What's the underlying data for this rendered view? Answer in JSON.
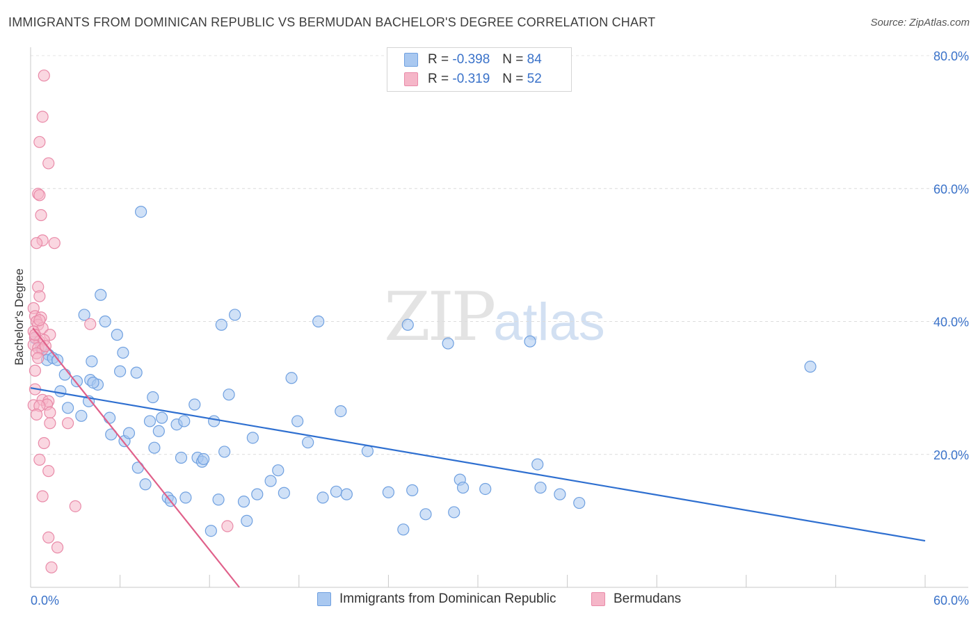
{
  "title": "IMMIGRANTS FROM DOMINICAN REPUBLIC VS BERMUDAN BACHELOR'S DEGREE CORRELATION CHART",
  "source": "Source: ZipAtlas.com",
  "watermark": {
    "zip": "ZIP",
    "atlas": "atlas"
  },
  "legend": {
    "rows": [
      {
        "r_label": "R =",
        "r_value": "-0.398",
        "n_label": "N =",
        "n_value": "84",
        "color": "#a9c8f0"
      },
      {
        "r_label": "R =",
        "r_value": "-0.319",
        "n_label": "N =",
        "n_value": "52",
        "color": "#f5b6c8"
      }
    ]
  },
  "bottom_legend": [
    {
      "label": "Immigrants from Dominican Republic",
      "color": "#a9c8f0"
    },
    {
      "label": "Bermudans",
      "color": "#f5b6c8"
    }
  ],
  "chart_data": {
    "type": "scatter",
    "title": "IMMIGRANTS FROM DOMINICAN REPUBLIC VS BERMUDAN BACHELOR'S DEGREE CORRELATION CHART",
    "xlabel": "",
    "ylabel": "Bachelor's Degree",
    "xlim": [
      0,
      60
    ],
    "ylim": [
      0,
      80
    ],
    "x_tick_labels": [
      "0.0%",
      "60.0%"
    ],
    "y_tick_labels": [
      "20.0%",
      "40.0%",
      "60.0%",
      "80.0%"
    ],
    "y_ticks": [
      20,
      40,
      60,
      80
    ],
    "grid": "horizontal dashed",
    "legend_position": "top-center",
    "series": [
      {
        "name": "Immigrants from Dominican Republic",
        "color": "#6fa0e0",
        "fill": "#a9c8f0",
        "trend": {
          "x": [
            0,
            60
          ],
          "y": [
            30.0,
            7.0
          ],
          "color": "#2e6fd0"
        },
        "points": [
          [
            0.3,
            37.5
          ],
          [
            0.7,
            36.0
          ],
          [
            1.2,
            35.0
          ],
          [
            1.1,
            34.2
          ],
          [
            1.5,
            34.5
          ],
          [
            1.8,
            34.2
          ],
          [
            2.3,
            32.0
          ],
          [
            2.0,
            29.5
          ],
          [
            2.5,
            27.0
          ],
          [
            3.1,
            31.0
          ],
          [
            3.4,
            25.8
          ],
          [
            3.6,
            41.0
          ],
          [
            3.9,
            28.0
          ],
          [
            4.0,
            31.2
          ],
          [
            4.5,
            30.5
          ],
          [
            4.7,
            44.0
          ],
          [
            5.0,
            40.0
          ],
          [
            4.1,
            34.0
          ],
          [
            5.3,
            25.5
          ],
          [
            5.4,
            23.0
          ],
          [
            5.8,
            38.0
          ],
          [
            6.0,
            32.5
          ],
          [
            6.2,
            35.3
          ],
          [
            6.3,
            22.0
          ],
          [
            6.6,
            23.2
          ],
          [
            7.1,
            32.3
          ],
          [
            7.2,
            18.0
          ],
          [
            7.4,
            56.5
          ],
          [
            7.7,
            15.5
          ],
          [
            8.0,
            25.0
          ],
          [
            8.2,
            28.6
          ],
          [
            8.3,
            21.0
          ],
          [
            8.6,
            23.5
          ],
          [
            8.8,
            25.5
          ],
          [
            9.2,
            13.5
          ],
          [
            9.4,
            13.0
          ],
          [
            9.8,
            24.5
          ],
          [
            10.1,
            19.5
          ],
          [
            10.3,
            25.0
          ],
          [
            10.4,
            13.5
          ],
          [
            11.0,
            27.5
          ],
          [
            11.2,
            19.5
          ],
          [
            11.5,
            18.9
          ],
          [
            11.6,
            19.3
          ],
          [
            12.1,
            8.5
          ],
          [
            12.3,
            25.0
          ],
          [
            12.6,
            13.2
          ],
          [
            12.8,
            39.5
          ],
          [
            13.0,
            20.4
          ],
          [
            13.3,
            29.0
          ],
          [
            13.7,
            41.0
          ],
          [
            14.3,
            12.9
          ],
          [
            14.5,
            10.0
          ],
          [
            14.9,
            22.5
          ],
          [
            15.2,
            14.0
          ],
          [
            16.1,
            16.0
          ],
          [
            16.6,
            17.6
          ],
          [
            17.0,
            14.2
          ],
          [
            17.5,
            31.5
          ],
          [
            17.9,
            25.0
          ],
          [
            18.6,
            21.8
          ],
          [
            19.3,
            40.0
          ],
          [
            19.6,
            13.5
          ],
          [
            20.5,
            14.4
          ],
          [
            20.8,
            26.5
          ],
          [
            21.2,
            14.0
          ],
          [
            22.6,
            20.5
          ],
          [
            24.0,
            14.3
          ],
          [
            25.0,
            8.7
          ],
          [
            25.3,
            39.5
          ],
          [
            25.6,
            14.6
          ],
          [
            26.5,
            11.0
          ],
          [
            28.0,
            36.7
          ],
          [
            28.4,
            11.3
          ],
          [
            28.8,
            16.2
          ],
          [
            29.0,
            15.0
          ],
          [
            30.5,
            14.8
          ],
          [
            33.5,
            37.0
          ],
          [
            34.0,
            18.5
          ],
          [
            34.2,
            15.0
          ],
          [
            35.5,
            14.0
          ],
          [
            36.8,
            12.7
          ],
          [
            52.3,
            33.2
          ],
          [
            4.2,
            30.8
          ]
        ]
      },
      {
        "name": "Bermudans",
        "color": "#e98aa8",
        "fill": "#f5b6c8",
        "trend": {
          "x": [
            0.15,
            14.0
          ],
          "y": [
            39.0,
            0.0
          ],
          "color": "#e0608a"
        },
        "points": [
          [
            0.9,
            77.0
          ],
          [
            0.8,
            70.8
          ],
          [
            0.6,
            67.0
          ],
          [
            1.2,
            63.8
          ],
          [
            0.5,
            59.2
          ],
          [
            0.6,
            59.0
          ],
          [
            0.7,
            56.0
          ],
          [
            0.8,
            52.2
          ],
          [
            0.4,
            51.8
          ],
          [
            1.6,
            51.8
          ],
          [
            0.5,
            45.2
          ],
          [
            0.6,
            43.8
          ],
          [
            0.2,
            42.0
          ],
          [
            0.3,
            40.8
          ],
          [
            0.7,
            40.6
          ],
          [
            0.4,
            40.0
          ],
          [
            0.5,
            39.5
          ],
          [
            0.8,
            39.0
          ],
          [
            0.2,
            38.5
          ],
          [
            1.3,
            38.0
          ],
          [
            0.3,
            37.6
          ],
          [
            0.6,
            37.0
          ],
          [
            0.9,
            37.2
          ],
          [
            0.2,
            36.5
          ],
          [
            0.5,
            36.0
          ],
          [
            0.8,
            35.8
          ],
          [
            0.4,
            35.2
          ],
          [
            0.3,
            32.6
          ],
          [
            4.0,
            39.6
          ],
          [
            0.3,
            29.8
          ],
          [
            0.8,
            28.2
          ],
          [
            1.2,
            28.0
          ],
          [
            1.1,
            27.5
          ],
          [
            0.2,
            27.4
          ],
          [
            0.6,
            27.3
          ],
          [
            1.3,
            26.3
          ],
          [
            0.4,
            26.0
          ],
          [
            1.3,
            24.7
          ],
          [
            2.5,
            24.7
          ],
          [
            0.9,
            21.7
          ],
          [
            0.6,
            19.2
          ],
          [
            1.2,
            17.5
          ],
          [
            0.8,
            13.7
          ],
          [
            3.0,
            12.2
          ],
          [
            1.2,
            7.5
          ],
          [
            1.8,
            6.0
          ],
          [
            1.4,
            3.0
          ],
          [
            13.2,
            9.2
          ],
          [
            0.6,
            40.2
          ],
          [
            0.3,
            38.0
          ],
          [
            0.5,
            34.5
          ],
          [
            1.0,
            36.3
          ]
        ]
      }
    ]
  }
}
